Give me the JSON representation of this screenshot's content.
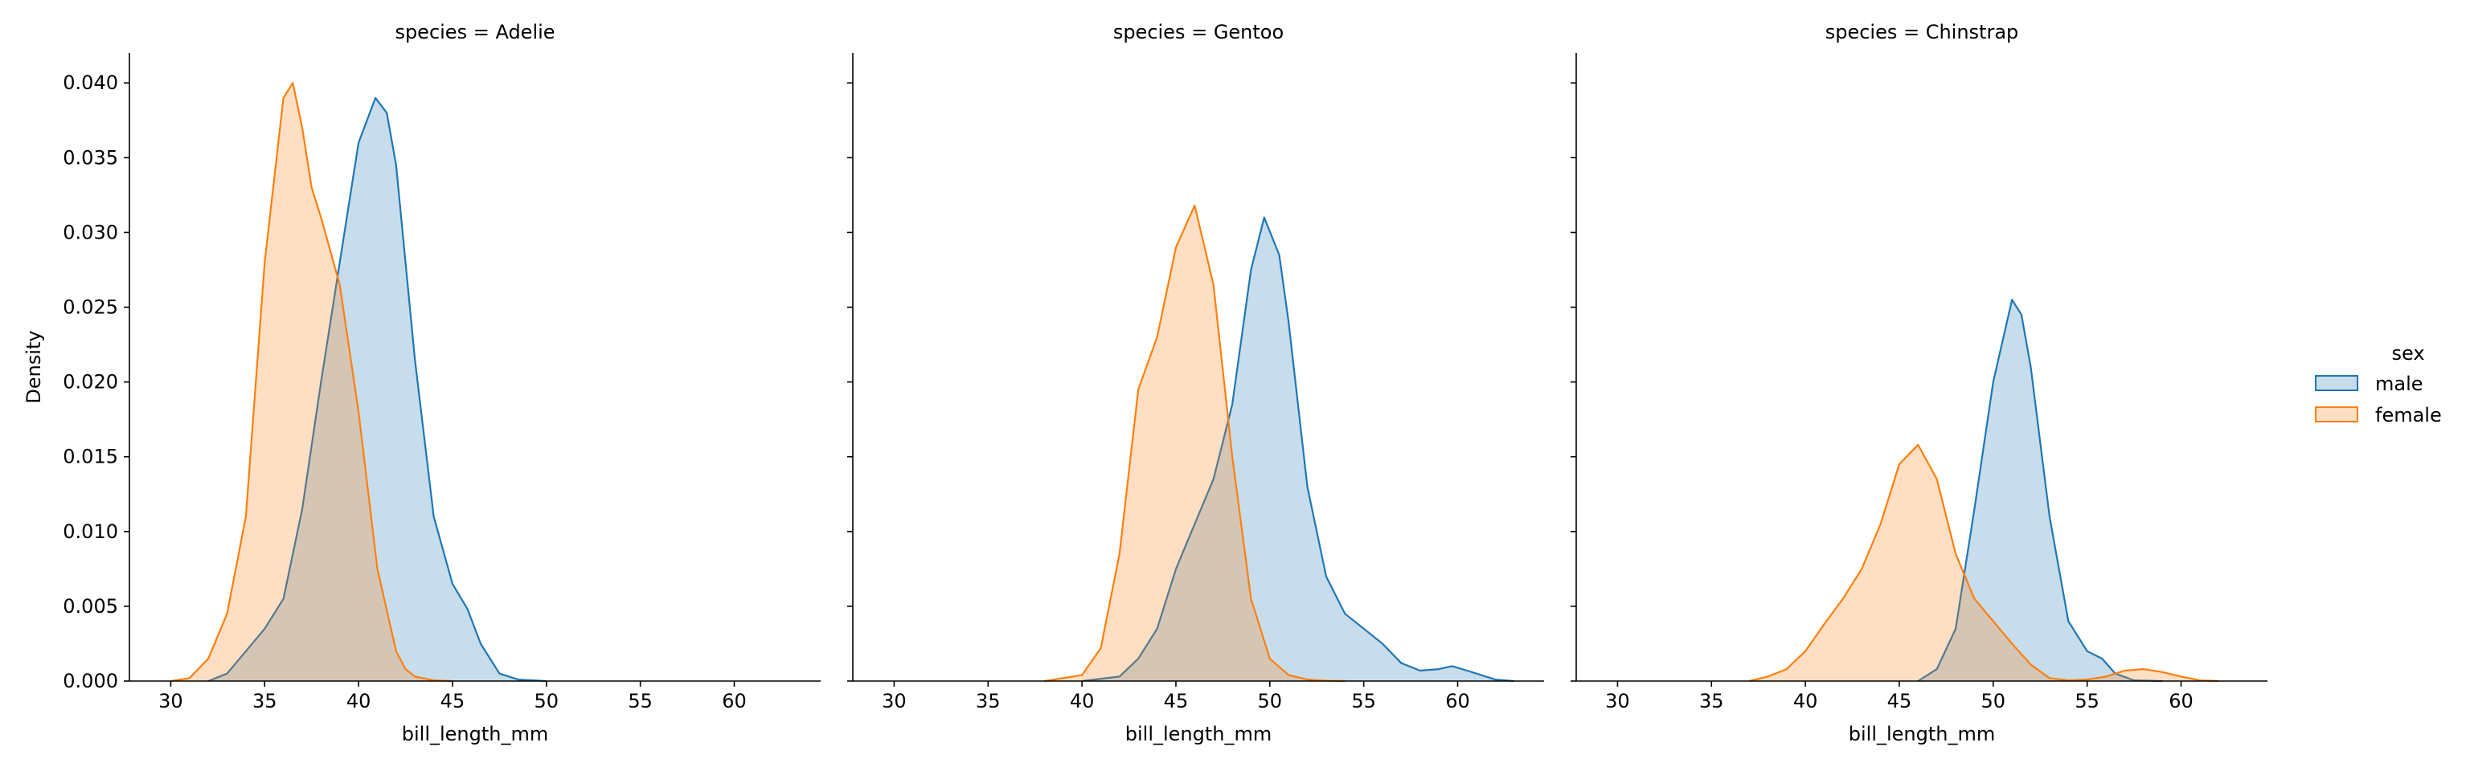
{
  "chart_data": {
    "type": "area",
    "facet_variable": "species",
    "facets": [
      {
        "title": "species = Adelie",
        "series": [
          {
            "name": "male",
            "x": [
              32,
              33,
              34,
              35,
              36,
              37,
              38,
              39,
              40,
              40.9,
              41.5,
              42,
              43,
              44,
              45,
              45.8,
              46.5,
              47.5,
              48.5,
              50
            ],
            "y": [
              0,
              0.0005,
              0.002,
              0.0035,
              0.0055,
              0.0115,
              0.02,
              0.028,
              0.036,
              0.039,
              0.038,
              0.0345,
              0.0215,
              0.011,
              0.0065,
              0.0048,
              0.0025,
              0.0005,
              0.0001,
              0
            ]
          },
          {
            "name": "female",
            "x": [
              30,
              31,
              32,
              33,
              34,
              35,
              36,
              36.5,
              37,
              37.5,
              38,
              39,
              40,
              41,
              42,
              42.5,
              43,
              44,
              45
            ],
            "y": [
              0,
              0.0002,
              0.0015,
              0.0045,
              0.011,
              0.028,
              0.039,
              0.04,
              0.037,
              0.033,
              0.031,
              0.0265,
              0.018,
              0.0075,
              0.002,
              0.0008,
              0.0003,
              5e-05,
              0
            ]
          }
        ]
      },
      {
        "title": "species = Gentoo",
        "series": [
          {
            "name": "male",
            "x": [
              40,
              42,
              43,
              44,
              45,
              46,
              47,
              48,
              49,
              49.7,
              50.5,
              51,
              52,
              53,
              54,
              55,
              56,
              57,
              58,
              59,
              59.7,
              60.5,
              62,
              63
            ],
            "y": [
              0,
              0.0003,
              0.0015,
              0.0035,
              0.0075,
              0.0105,
              0.0135,
              0.0185,
              0.0275,
              0.031,
              0.0285,
              0.024,
              0.013,
              0.007,
              0.0045,
              0.0035,
              0.0025,
              0.0012,
              0.0007,
              0.0008,
              0.001,
              0.0007,
              0.0001,
              0
            ]
          },
          {
            "name": "female",
            "x": [
              38,
              40,
              41,
              42,
              43,
              44,
              45,
              46,
              47,
              48,
              49,
              50,
              51,
              52,
              53,
              54
            ],
            "y": [
              0,
              0.0004,
              0.0022,
              0.0085,
              0.0195,
              0.023,
              0.029,
              0.0318,
              0.0265,
              0.015,
              0.0055,
              0.0015,
              0.0004,
              0.0001,
              2e-05,
              0
            ]
          }
        ]
      },
      {
        "title": "species = Chinstrap",
        "series": [
          {
            "name": "male",
            "x": [
              46,
              47,
              48,
              49,
              50,
              51,
              51.5,
              52,
              53,
              54,
              55,
              55.8,
              56.5,
              57.5,
              59
            ],
            "y": [
              0,
              0.0008,
              0.0035,
              0.0115,
              0.02,
              0.0255,
              0.0245,
              0.021,
              0.011,
              0.004,
              0.002,
              0.0015,
              0.0005,
              5e-05,
              0
            ]
          },
          {
            "name": "female",
            "x": [
              37,
              38,
              39,
              40,
              41,
              42,
              43,
              44,
              45,
              46,
              47,
              48,
              49,
              50,
              51,
              52,
              53,
              54,
              55,
              56,
              57,
              58,
              59,
              60,
              61,
              62
            ],
            "y": [
              0,
              0.0003,
              0.0008,
              0.002,
              0.0038,
              0.0055,
              0.0075,
              0.0105,
              0.0145,
              0.0158,
              0.0135,
              0.0085,
              0.0055,
              0.004,
              0.0025,
              0.0011,
              0.0002,
              5e-05,
              0.0001,
              0.0003,
              0.0007,
              0.0008,
              0.0006,
              0.0003,
              5e-05,
              0
            ]
          }
        ]
      }
    ],
    "xlabel": "bill_length_mm",
    "ylabel": "Density",
    "xlim": [
      27.8,
      64.6
    ],
    "ylim": [
      0,
      0.042
    ],
    "xticks": [
      "30",
      "35",
      "40",
      "45",
      "50",
      "55",
      "60"
    ],
    "yticks": [
      "0.000",
      "0.005",
      "0.010",
      "0.015",
      "0.020",
      "0.025",
      "0.030",
      "0.035",
      "0.040"
    ],
    "grid": false,
    "legend": {
      "title": "sex",
      "placement": "right",
      "entries": [
        {
          "name": "male",
          "color": "#1f77b4"
        },
        {
          "name": "female",
          "color": "#ff7f0e"
        }
      ]
    }
  }
}
